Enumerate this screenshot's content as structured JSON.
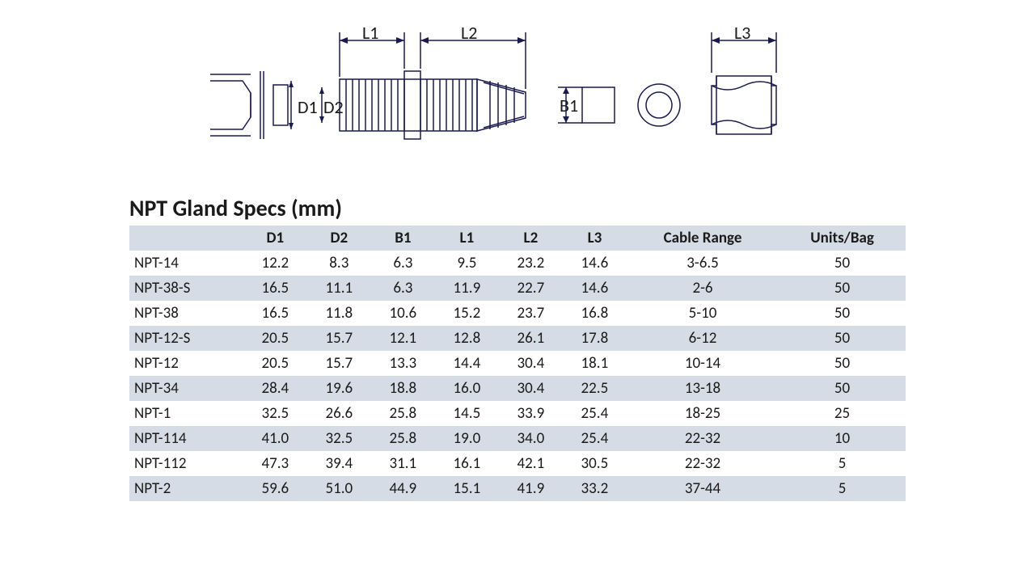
{
  "diagram": {
    "labels": {
      "L1": "L1",
      "L2": "L2",
      "L3": "L3",
      "D1": "D1",
      "D2": "D2",
      "B1": "B1"
    },
    "stroke": "#1a1a4d",
    "stroke_width": 1.5
  },
  "title": "NPT Gland Specs (mm)",
  "table": {
    "header_bg": "#d6dce5",
    "row_alt_bg": "#d6dce5",
    "row_bg": "#ffffff",
    "font_size": 19,
    "columns": [
      "",
      "D1",
      "D2",
      "B1",
      "L1",
      "L2",
      "L3",
      "Cable Range",
      "Units/Bag"
    ],
    "col_align": [
      "left",
      "center",
      "center",
      "center",
      "center",
      "center",
      "center",
      "center",
      "center"
    ],
    "rows": [
      [
        "NPT-14",
        "12.2",
        "8.3",
        "6.3",
        "9.5",
        "23.2",
        "14.6",
        "3-6.5",
        "50"
      ],
      [
        "NPT-38-S",
        "16.5",
        "11.1",
        "6.3",
        "11.9",
        "22.7",
        "14.6",
        "2-6",
        "50"
      ],
      [
        "NPT-38",
        "16.5",
        "11.8",
        "10.6",
        "15.2",
        "23.7",
        "16.8",
        "5-10",
        "50"
      ],
      [
        "NPT-12-S",
        "20.5",
        "15.7",
        "12.1",
        "12.8",
        "26.1",
        "17.8",
        "6-12",
        "50"
      ],
      [
        "NPT-12",
        "20.5",
        "15.7",
        "13.3",
        "14.4",
        "30.4",
        "18.1",
        "10-14",
        "50"
      ],
      [
        "NPT-34",
        "28.4",
        "19.6",
        "18.8",
        "16.0",
        "30.4",
        "22.5",
        "13-18",
        "50"
      ],
      [
        "NPT-1",
        "32.5",
        "26.6",
        "25.8",
        "14.5",
        "33.9",
        "25.4",
        "18-25",
        "25"
      ],
      [
        "NPT-114",
        "41.0",
        "32.5",
        "25.8",
        "19.0",
        "34.0",
        "25.4",
        "22-32",
        "10"
      ],
      [
        "NPT-112",
        "47.3",
        "39.4",
        "31.1",
        "16.1",
        "42.1",
        "30.5",
        "22-32",
        "5"
      ],
      [
        "NPT-2",
        "59.6",
        "51.0",
        "44.9",
        "15.1",
        "41.9",
        "33.2",
        "37-44",
        "5"
      ]
    ]
  }
}
